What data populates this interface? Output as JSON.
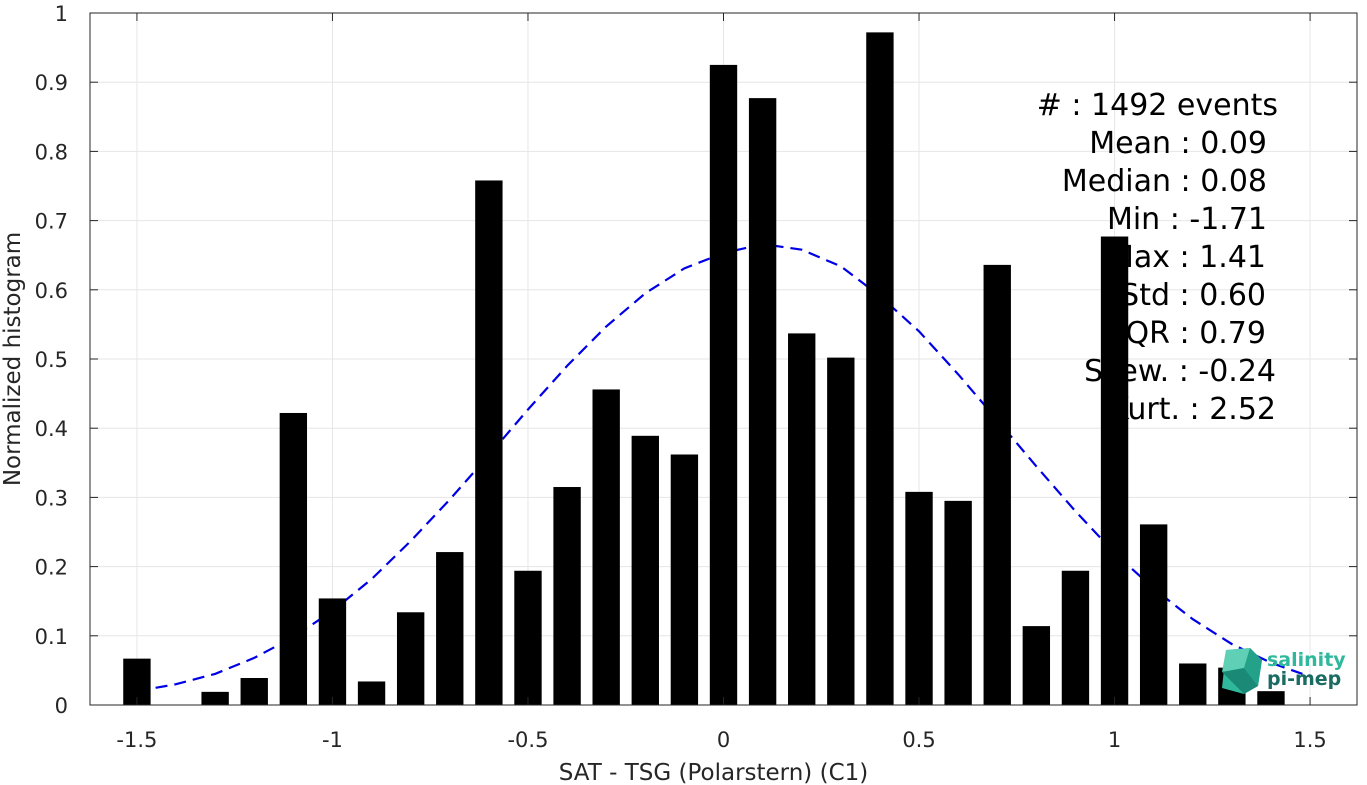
{
  "chart_data": {
    "type": "bar",
    "xlabel": "SAT - TSG (Polarstern) (C1)",
    "ylabel": "Normalized histogram",
    "xlim": [
      -1.62,
      1.62
    ],
    "ylim": [
      0,
      1
    ],
    "grid": true,
    "x_ticks": [
      -1.5,
      -1,
      -0.5,
      0,
      0.5,
      1,
      1.5
    ],
    "x_tick_labels": [
      "-1.5",
      "-1",
      "-0.5",
      "0",
      "0.5",
      "1",
      "1.5"
    ],
    "y_ticks": [
      0,
      0.1,
      0.2,
      0.3,
      0.4,
      0.5,
      0.6,
      0.7,
      0.8,
      0.9,
      1
    ],
    "y_tick_labels": [
      "0",
      "0.1",
      "0.2",
      "0.3",
      "0.4",
      "0.5",
      "0.6",
      "0.7",
      "0.8",
      "0.9",
      "1"
    ],
    "bar_color": "#000000",
    "bars": {
      "x": [
        -1.5,
        -1.3,
        -1.2,
        -1.1,
        -1.0,
        -0.9,
        -0.8,
        -0.7,
        -0.6,
        -0.5,
        -0.4,
        -0.3,
        -0.2,
        -0.1,
        0.0,
        0.1,
        0.2,
        0.3,
        0.4,
        0.5,
        0.6,
        0.7,
        0.8,
        0.9,
        1.0,
        1.1,
        1.2,
        1.3,
        1.4
      ],
      "values": [
        0.067,
        0.019,
        0.039,
        0.422,
        0.154,
        0.034,
        0.134,
        0.221,
        0.758,
        0.194,
        0.315,
        0.456,
        0.389,
        0.362,
        0.925,
        0.877,
        0.537,
        0.502,
        0.972,
        0.308,
        0.295,
        0.636,
        0.114,
        0.194,
        0.677,
        0.261,
        0.06,
        0.054,
        0.02
      ]
    },
    "fit_curve": {
      "name": "",
      "color": "#0000e6",
      "style": "dashed",
      "x": [
        -1.5,
        -1.4,
        -1.3,
        -1.2,
        -1.1,
        -1.0,
        -0.9,
        -0.8,
        -0.7,
        -0.6,
        -0.5,
        -0.4,
        -0.3,
        -0.2,
        -0.1,
        0.0,
        0.1,
        0.2,
        0.3,
        0.4,
        0.5,
        0.6,
        0.7,
        0.8,
        0.9,
        1.0,
        1.1,
        1.2,
        1.3,
        1.4,
        1.5
      ],
      "y": [
        0.02,
        0.03,
        0.045,
        0.068,
        0.098,
        0.136,
        0.182,
        0.237,
        0.297,
        0.361,
        0.427,
        0.49,
        0.547,
        0.595,
        0.631,
        0.653,
        0.666,
        0.658,
        0.634,
        0.591,
        0.54,
        0.478,
        0.412,
        0.345,
        0.28,
        0.22,
        0.168,
        0.124,
        0.088,
        0.061,
        0.041
      ]
    }
  },
  "stats": {
    "lines": [
      "#  : 1492 events",
      "Mean : 0.09",
      "Median : 0.08",
      "Min : -1.71",
      "Max : 1.41",
      "Std : 0.60",
      "IQR : 0.79",
      "Skew. : -0.24",
      "Kurt. : 2.52"
    ]
  },
  "logo": {
    "line1": "salinity",
    "line2": "pi-mep",
    "color1": "#2fb89c",
    "color2": "#1a6b62"
  }
}
